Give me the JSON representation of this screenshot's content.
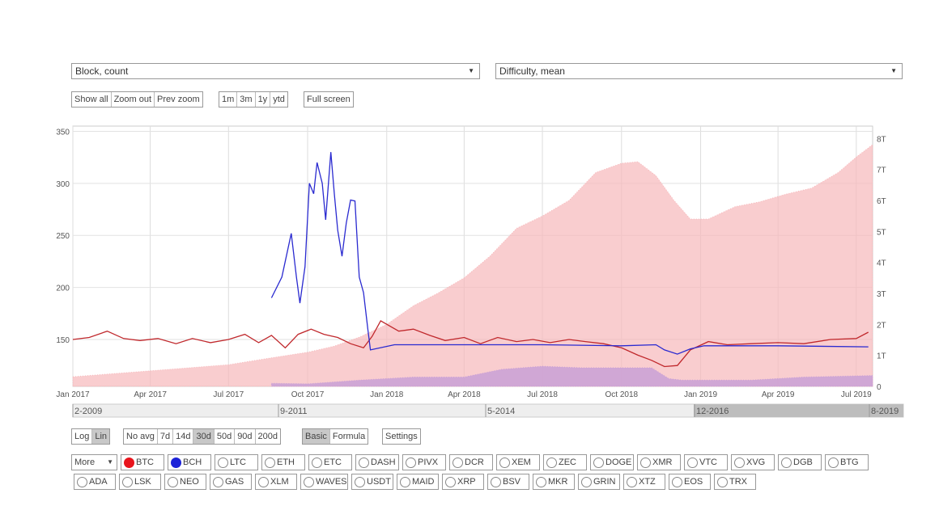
{
  "selectors": {
    "left": {
      "value": "Block, count"
    },
    "right": {
      "value": "Difficulty, mean"
    }
  },
  "zoom_buttons": [
    "Show all",
    "Zoom out",
    "Prev zoom"
  ],
  "range_buttons": [
    "1m",
    "3m",
    "1y",
    "ytd"
  ],
  "fullscreen_label": "Full screen",
  "scale_buttons": {
    "items": [
      "Log",
      "Lin"
    ],
    "active": "Lin"
  },
  "avg_buttons": {
    "items": [
      "No avg",
      "7d",
      "14d",
      "30d",
      "50d",
      "90d",
      "200d"
    ],
    "active": "30d"
  },
  "mode_buttons": {
    "items": [
      "Basic",
      "Formula"
    ],
    "active": "Basic"
  },
  "settings_label": "Settings",
  "more_label": "More",
  "coins_row1": [
    {
      "label": "BTC",
      "color": "#e8141c",
      "active": true
    },
    {
      "label": "BCH",
      "color": "#1c22d8",
      "active": true
    },
    {
      "label": "LTC"
    },
    {
      "label": "ETH"
    },
    {
      "label": "ETC"
    },
    {
      "label": "DASH"
    },
    {
      "label": "PIVX"
    },
    {
      "label": "DCR"
    },
    {
      "label": "XEM"
    },
    {
      "label": "ZEC"
    },
    {
      "label": "DOGE"
    },
    {
      "label": "XMR"
    },
    {
      "label": "VTC"
    },
    {
      "label": "XVG"
    },
    {
      "label": "DGB"
    },
    {
      "label": "BTG"
    }
  ],
  "coins_row2": [
    {
      "label": "ADA"
    },
    {
      "label": "LSK"
    },
    {
      "label": "NEO"
    },
    {
      "label": "GAS"
    },
    {
      "label": "XLM"
    },
    {
      "label": "WAVES"
    },
    {
      "label": "USDT"
    },
    {
      "label": "MAID"
    },
    {
      "label": "XRP"
    },
    {
      "label": "BSV"
    },
    {
      "label": "MKR"
    },
    {
      "label": "GRIN"
    },
    {
      "label": "XTZ"
    },
    {
      "label": "EOS"
    },
    {
      "label": "TRX"
    }
  ],
  "navigator_labels": [
    "2-2009",
    "9-2011",
    "5-2014",
    "12-2016",
    "8-2019"
  ],
  "colors": {
    "btc": "#c0282c",
    "bch": "#2a2ad0",
    "btc_difficulty": "#f7b8bb",
    "bch_difficulty": "#c9a0d6"
  },
  "chart_data": {
    "type": "line",
    "x_tick_labels": [
      "Jan 2017",
      "Apr 2017",
      "Jul 2017",
      "Oct 2017",
      "Jan 2018",
      "Apr 2018",
      "Jul 2018",
      "Oct 2018",
      "Jan 2019",
      "Apr 2019",
      "Jul 2019"
    ],
    "y_left": {
      "label": "Block, count",
      "ticks": [
        150,
        200,
        250,
        300,
        350
      ],
      "ylim": [
        105,
        355
      ]
    },
    "y_right": {
      "label": "Difficulty, mean",
      "ticks": [
        "0",
        "1T",
        "2T",
        "3T",
        "4T",
        "5T",
        "6T",
        "7T",
        "8T"
      ],
      "ylim": [
        0,
        8.4
      ]
    },
    "xlim": [
      "2017-01-01",
      "2019-07-20"
    ],
    "grid": true,
    "series": [
      {
        "name": "BTC",
        "axis": "left",
        "style": "line",
        "points": [
          [
            "2017-01-01",
            150
          ],
          [
            "2017-01-20",
            152
          ],
          [
            "2017-02-10",
            158
          ],
          [
            "2017-03-01",
            151
          ],
          [
            "2017-03-20",
            149
          ],
          [
            "2017-04-10",
            151
          ],
          [
            "2017-05-01",
            146
          ],
          [
            "2017-05-20",
            151
          ],
          [
            "2017-06-10",
            147
          ],
          [
            "2017-07-01",
            150
          ],
          [
            "2017-07-20",
            155
          ],
          [
            "2017-08-05",
            147
          ],
          [
            "2017-08-20",
            154
          ],
          [
            "2017-09-05",
            142
          ],
          [
            "2017-09-20",
            155
          ],
          [
            "2017-10-05",
            160
          ],
          [
            "2017-10-20",
            155
          ],
          [
            "2017-11-05",
            152
          ],
          [
            "2017-11-20",
            146
          ],
          [
            "2017-12-05",
            142
          ],
          [
            "2017-12-15",
            153
          ],
          [
            "2017-12-25",
            168
          ],
          [
            "2018-01-15",
            158
          ],
          [
            "2018-02-01",
            160
          ],
          [
            "2018-02-20",
            154
          ],
          [
            "2018-03-10",
            149
          ],
          [
            "2018-04-01",
            152
          ],
          [
            "2018-04-20",
            146
          ],
          [
            "2018-05-10",
            152
          ],
          [
            "2018-06-01",
            148
          ],
          [
            "2018-06-20",
            150
          ],
          [
            "2018-07-10",
            147
          ],
          [
            "2018-08-01",
            150
          ],
          [
            "2018-08-20",
            148
          ],
          [
            "2018-09-10",
            146
          ],
          [
            "2018-10-01",
            142
          ],
          [
            "2018-10-20",
            135
          ],
          [
            "2018-11-05",
            130
          ],
          [
            "2018-11-20",
            124
          ],
          [
            "2018-12-05",
            125
          ],
          [
            "2018-12-20",
            140
          ],
          [
            "2019-01-10",
            148
          ],
          [
            "2019-02-01",
            145
          ],
          [
            "2019-03-01",
            146
          ],
          [
            "2019-04-01",
            147
          ],
          [
            "2019-05-01",
            146
          ],
          [
            "2019-06-01",
            150
          ],
          [
            "2019-07-01",
            151
          ],
          [
            "2019-07-15",
            157
          ]
        ]
      },
      {
        "name": "BCH",
        "axis": "left",
        "style": "line",
        "points": [
          [
            "2017-08-20",
            190
          ],
          [
            "2017-09-01",
            210
          ],
          [
            "2017-09-12",
            252
          ],
          [
            "2017-09-18",
            210
          ],
          [
            "2017-09-22",
            185
          ],
          [
            "2017-09-28",
            220
          ],
          [
            "2017-10-03",
            300
          ],
          [
            "2017-10-08",
            290
          ],
          [
            "2017-10-12",
            320
          ],
          [
            "2017-10-18",
            300
          ],
          [
            "2017-10-22",
            265
          ],
          [
            "2017-10-28",
            330
          ],
          [
            "2017-11-01",
            290
          ],
          [
            "2017-11-05",
            255
          ],
          [
            "2017-11-10",
            230
          ],
          [
            "2017-11-15",
            262
          ],
          [
            "2017-11-20",
            284
          ],
          [
            "2017-11-25",
            283
          ],
          [
            "2017-11-30",
            210
          ],
          [
            "2017-12-05",
            195
          ],
          [
            "2017-12-10",
            160
          ],
          [
            "2017-12-13",
            140
          ],
          [
            "2018-01-10",
            145
          ],
          [
            "2018-04-01",
            145
          ],
          [
            "2018-07-01",
            145
          ],
          [
            "2018-10-01",
            144
          ],
          [
            "2018-11-10",
            145
          ],
          [
            "2018-11-20",
            140
          ],
          [
            "2018-12-05",
            136
          ],
          [
            "2018-12-20",
            141
          ],
          [
            "2019-01-05",
            144
          ],
          [
            "2019-04-01",
            144
          ],
          [
            "2019-07-15",
            143
          ]
        ]
      },
      {
        "name": "BTC difficulty",
        "axis": "right",
        "style": "area",
        "points": [
          [
            "2017-01-01",
            0.31
          ],
          [
            "2017-04-01",
            0.5
          ],
          [
            "2017-07-01",
            0.7
          ],
          [
            "2017-08-15",
            0.9
          ],
          [
            "2017-10-01",
            1.1
          ],
          [
            "2017-11-01",
            1.3
          ],
          [
            "2017-12-01",
            1.6
          ],
          [
            "2018-01-01",
            2.0
          ],
          [
            "2018-02-01",
            2.6
          ],
          [
            "2018-03-01",
            3.0
          ],
          [
            "2018-04-01",
            3.5
          ],
          [
            "2018-05-01",
            4.2
          ],
          [
            "2018-06-01",
            5.1
          ],
          [
            "2018-07-01",
            5.5
          ],
          [
            "2018-08-01",
            6.0
          ],
          [
            "2018-09-01",
            6.9
          ],
          [
            "2018-10-01",
            7.2
          ],
          [
            "2018-10-20",
            7.25
          ],
          [
            "2018-11-10",
            6.8
          ],
          [
            "2018-12-01",
            6.0
          ],
          [
            "2018-12-20",
            5.4
          ],
          [
            "2019-01-10",
            5.4
          ],
          [
            "2019-02-10",
            5.8
          ],
          [
            "2019-03-10",
            5.95
          ],
          [
            "2019-04-10",
            6.2
          ],
          [
            "2019-05-10",
            6.4
          ],
          [
            "2019-06-10",
            6.9
          ],
          [
            "2019-07-01",
            7.4
          ],
          [
            "2019-07-20",
            7.8
          ]
        ]
      },
      {
        "name": "BCH difficulty",
        "axis": "right",
        "style": "area",
        "points": [
          [
            "2017-08-20",
            0.1
          ],
          [
            "2017-10-01",
            0.08
          ],
          [
            "2017-12-01",
            0.2
          ],
          [
            "2018-02-01",
            0.3
          ],
          [
            "2018-04-01",
            0.3
          ],
          [
            "2018-05-15",
            0.55
          ],
          [
            "2018-07-01",
            0.65
          ],
          [
            "2018-08-15",
            0.6
          ],
          [
            "2018-10-01",
            0.6
          ],
          [
            "2018-11-05",
            0.6
          ],
          [
            "2018-11-25",
            0.25
          ],
          [
            "2018-12-10",
            0.2
          ],
          [
            "2019-03-01",
            0.2
          ],
          [
            "2019-05-01",
            0.3
          ],
          [
            "2019-07-20",
            0.35
          ]
        ]
      }
    ]
  }
}
